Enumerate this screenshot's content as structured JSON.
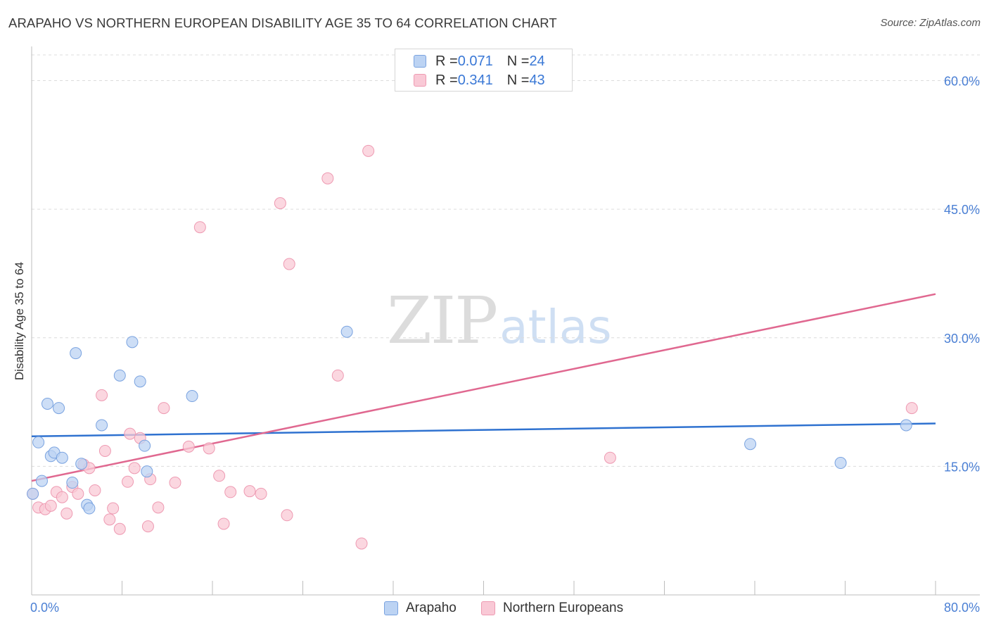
{
  "title": "ARAPAHO VS NORTHERN EUROPEAN DISABILITY AGE 35 TO 64 CORRELATION CHART",
  "source": "Source: ZipAtlas.com",
  "watermark": {
    "zip": "ZIP",
    "atlas": "atlas"
  },
  "legend": {
    "rows": [
      {
        "r_label": "R = ",
        "r_value": "0.071",
        "n_label": "N = ",
        "n_value": "24"
      },
      {
        "r_label": "R = ",
        "r_value": "0.341",
        "n_label": "N = ",
        "n_value": "43"
      }
    ]
  },
  "bottom_legend": {
    "series1": "Arapaho",
    "series2": "Northern Europeans"
  },
  "colors": {
    "arapaho_fill": "#bcd3f3",
    "arapaho_stroke": "#7aa3e0",
    "arapaho_line": "#2f72d0",
    "northern_fill": "#f9c9d6",
    "northern_stroke": "#ee9ab2",
    "northern_line": "#e06890",
    "axis_text": "#4a7fd4",
    "grid": "#dcdcdc"
  },
  "chart_data": {
    "type": "scatter",
    "title": "ARAPAHO VS NORTHERN EUROPEAN DISABILITY AGE 35 TO 64 CORRELATION CHART",
    "xlabel": "",
    "ylabel": "Disability Age 35 to 64",
    "xlim": [
      0,
      80
    ],
    "ylim": [
      0,
      63
    ],
    "x_ticks_labeled": [
      "0.0%",
      "80.0%"
    ],
    "x_tick_values": [
      0,
      8,
      16,
      24,
      32,
      40,
      48,
      56,
      64,
      72,
      80
    ],
    "y_ticks": [
      {
        "value": 15,
        "label": "15.0%"
      },
      {
        "value": 30,
        "label": "30.0%"
      },
      {
        "value": 45,
        "label": "45.0%"
      },
      {
        "value": 60,
        "label": "60.0%"
      }
    ],
    "grid": true,
    "legend_position": "top-center",
    "series": [
      {
        "name": "Arapaho",
        "r": 0.071,
        "n": 24,
        "trend": {
          "x": [
            0,
            80
          ],
          "y": [
            18.5,
            20.0
          ]
        },
        "points": [
          [
            0.1,
            11.8
          ],
          [
            0.6,
            17.8
          ],
          [
            0.9,
            13.3
          ],
          [
            1.4,
            22.3
          ],
          [
            1.7,
            16.2
          ],
          [
            2.0,
            16.6
          ],
          [
            2.4,
            21.8
          ],
          [
            2.7,
            16.0
          ],
          [
            3.6,
            13.1
          ],
          [
            3.9,
            28.2
          ],
          [
            4.4,
            15.3
          ],
          [
            4.9,
            10.5
          ],
          [
            5.1,
            10.1
          ],
          [
            6.2,
            19.8
          ],
          [
            7.8,
            25.6
          ],
          [
            8.9,
            29.5
          ],
          [
            9.6,
            24.9
          ],
          [
            10.0,
            17.4
          ],
          [
            10.2,
            14.4
          ],
          [
            14.2,
            23.2
          ],
          [
            27.9,
            30.7
          ],
          [
            63.6,
            17.6
          ],
          [
            71.6,
            15.4
          ],
          [
            77.4,
            19.8
          ]
        ]
      },
      {
        "name": "Northern Europeans",
        "r": 0.341,
        "n": 43,
        "trend": {
          "x": [
            0,
            80
          ],
          "y": [
            13.3,
            35.1
          ]
        },
        "points": [
          [
            0.1,
            11.8
          ],
          [
            0.6,
            10.2
          ],
          [
            1.2,
            10.0
          ],
          [
            1.7,
            10.4
          ],
          [
            2.2,
            12.0
          ],
          [
            2.7,
            11.4
          ],
          [
            3.1,
            9.5
          ],
          [
            3.6,
            12.6
          ],
          [
            4.1,
            11.8
          ],
          [
            4.6,
            15.2
          ],
          [
            5.1,
            14.8
          ],
          [
            5.6,
            12.2
          ],
          [
            6.2,
            23.3
          ],
          [
            6.5,
            16.8
          ],
          [
            6.9,
            8.8
          ],
          [
            7.2,
            10.1
          ],
          [
            7.8,
            7.7
          ],
          [
            8.5,
            13.2
          ],
          [
            8.7,
            18.8
          ],
          [
            9.1,
            14.8
          ],
          [
            9.6,
            18.3
          ],
          [
            10.3,
            8.0
          ],
          [
            10.5,
            13.5
          ],
          [
            11.2,
            10.2
          ],
          [
            11.7,
            21.8
          ],
          [
            12.7,
            13.1
          ],
          [
            13.9,
            17.3
          ],
          [
            14.9,
            42.9
          ],
          [
            15.7,
            17.1
          ],
          [
            16.6,
            13.9
          ],
          [
            17.0,
            8.3
          ],
          [
            17.6,
            12.0
          ],
          [
            19.3,
            12.1
          ],
          [
            20.3,
            11.8
          ],
          [
            22.0,
            45.7
          ],
          [
            22.6,
            9.3
          ],
          [
            22.8,
            38.6
          ],
          [
            26.2,
            48.6
          ],
          [
            27.1,
            25.6
          ],
          [
            29.2,
            6.0
          ],
          [
            29.8,
            51.8
          ],
          [
            51.2,
            16.0
          ],
          [
            77.9,
            21.8
          ]
        ]
      }
    ]
  }
}
